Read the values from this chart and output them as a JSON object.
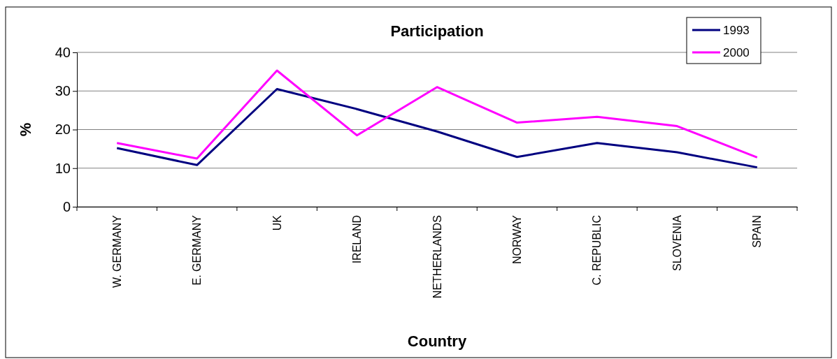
{
  "chart_data": {
    "type": "line",
    "title": "Participation",
    "xlabel": "Country",
    "ylabel": "%",
    "categories": [
      "W. GERMANY",
      "E. GERMANY",
      "UK",
      "IRELAND",
      "NETHERLANDS",
      "NORWAY",
      "C. REPUBLIC",
      "SLOVENIA",
      "SPAIN"
    ],
    "series": [
      {
        "name": "1993",
        "color": "#000080",
        "values": [
          15.2,
          10.8,
          30.5,
          25.3,
          19.5,
          12.9,
          16.5,
          14.1,
          10.2
        ]
      },
      {
        "name": "2000",
        "color": "#ff00ff",
        "values": [
          16.5,
          12.5,
          35.3,
          18.5,
          31.0,
          21.8,
          23.3,
          20.9,
          12.8
        ]
      }
    ],
    "ylim": [
      0,
      40
    ],
    "yticks": [
      0,
      10,
      20,
      30,
      40
    ],
    "grid": "y",
    "legend": "top right",
    "marker": "none",
    "line_style": "solid"
  }
}
